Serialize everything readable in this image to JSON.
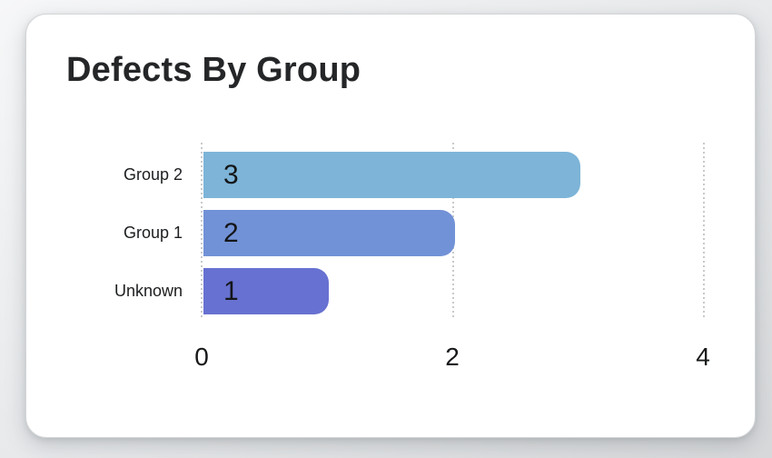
{
  "card": {
    "title": "Defects By Group"
  },
  "chart_data": {
    "type": "bar",
    "orientation": "horizontal",
    "title": "Defects By Group",
    "categories": [
      "Group 2",
      "Group 1",
      "Unknown"
    ],
    "values": [
      3,
      2,
      1
    ],
    "bar_colors": [
      "#7db4d8",
      "#7292d7",
      "#6771d1"
    ],
    "xticks": [
      "0",
      "2",
      "4"
    ],
    "xlim": [
      0,
      4
    ],
    "xlabel": "",
    "ylabel": "",
    "grid": "vertical-dotted",
    "legend": "none",
    "value_labels": "inside-start"
  }
}
